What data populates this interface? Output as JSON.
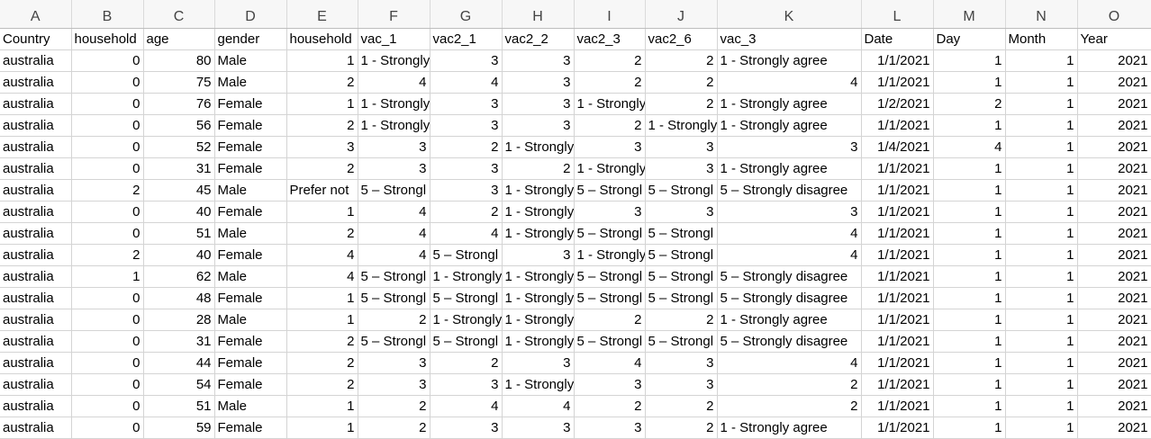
{
  "columns": [
    "A",
    "B",
    "C",
    "D",
    "E",
    "F",
    "G",
    "H",
    "I",
    "J",
    "K",
    "L",
    "M",
    "N",
    "O"
  ],
  "headers": [
    "Country",
    "household",
    "age",
    "gender",
    "household",
    "vac_1",
    "vac2_1",
    "vac2_2",
    "vac2_3",
    "vac2_6",
    "vac_3",
    "Date",
    "Day",
    "Month",
    "Year"
  ],
  "rows": [
    [
      "australia",
      "0",
      "80",
      "Male",
      "1",
      "1 - Strongly",
      "3",
      "3",
      "2",
      "2",
      "1 - Strongly agree",
      "1/1/2021",
      "1",
      "1",
      "2021"
    ],
    [
      "australia",
      "0",
      "75",
      "Male",
      "2",
      "4",
      "4",
      "3",
      "2",
      "2",
      "4",
      "1/1/2021",
      "1",
      "1",
      "2021"
    ],
    [
      "australia",
      "0",
      "76",
      "Female",
      "1",
      "1 - Strongly",
      "3",
      "3",
      "1 - Strongly",
      "2",
      "1 - Strongly agree",
      "1/2/2021",
      "2",
      "1",
      "2021"
    ],
    [
      "australia",
      "0",
      "56",
      "Female",
      "2",
      "1 - Strongly",
      "3",
      "3",
      "2",
      "1 - Strongly",
      "1 - Strongly agree",
      "1/1/2021",
      "1",
      "1",
      "2021"
    ],
    [
      "australia",
      "0",
      "52",
      "Female",
      "3",
      "3",
      "2",
      "1 - Strongly",
      "3",
      "3",
      "3",
      "1/4/2021",
      "4",
      "1",
      "2021"
    ],
    [
      "australia",
      "0",
      "31",
      "Female",
      "2",
      "3",
      "3",
      "2",
      "1 - Strongly",
      "3",
      "1 - Strongly agree",
      "1/1/2021",
      "1",
      "1",
      "2021"
    ],
    [
      "australia",
      "2",
      "45",
      "Male",
      "Prefer not",
      "5 – Strongl",
      "3",
      "1 - Strongly",
      "5 – Strongl",
      "5 – Strongl",
      "5 – Strongly disagree",
      "1/1/2021",
      "1",
      "1",
      "2021"
    ],
    [
      "australia",
      "0",
      "40",
      "Female",
      "1",
      "4",
      "2",
      "1 - Strongly",
      "3",
      "3",
      "3",
      "1/1/2021",
      "1",
      "1",
      "2021"
    ],
    [
      "australia",
      "0",
      "51",
      "Male",
      "2",
      "4",
      "4",
      "1 - Strongly",
      "5 – Strongl",
      "5 – Strongl",
      "4",
      "1/1/2021",
      "1",
      "1",
      "2021"
    ],
    [
      "australia",
      "2",
      "40",
      "Female",
      "4",
      "4",
      "5 – Strongl",
      "3",
      "1 - Strongly",
      "5 – Strongl",
      "4",
      "1/1/2021",
      "1",
      "1",
      "2021"
    ],
    [
      "australia",
      "1",
      "62",
      "Male",
      "4",
      "5 – Strongl",
      "1 - Strongly",
      "1 - Strongly",
      "5 – Strongl",
      "5 – Strongl",
      "5 – Strongly disagree",
      "1/1/2021",
      "1",
      "1",
      "2021"
    ],
    [
      "australia",
      "0",
      "48",
      "Female",
      "1",
      "5 – Strongl",
      "5 – Strongl",
      "1 - Strongly",
      "5 – Strongl",
      "5 – Strongl",
      "5 – Strongly disagree",
      "1/1/2021",
      "1",
      "1",
      "2021"
    ],
    [
      "australia",
      "0",
      "28",
      "Male",
      "1",
      "2",
      "1 - Strongly",
      "1 - Strongly",
      "2",
      "2",
      "1 - Strongly agree",
      "1/1/2021",
      "1",
      "1",
      "2021"
    ],
    [
      "australia",
      "0",
      "31",
      "Female",
      "2",
      "5 – Strongl",
      "5 – Strongl",
      "1 - Strongly",
      "5 – Strongl",
      "5 – Strongl",
      "5 – Strongly disagree",
      "1/1/2021",
      "1",
      "1",
      "2021"
    ],
    [
      "australia",
      "0",
      "44",
      "Female",
      "2",
      "3",
      "2",
      "3",
      "4",
      "3",
      "4",
      "1/1/2021",
      "1",
      "1",
      "2021"
    ],
    [
      "australia",
      "0",
      "54",
      "Female",
      "2",
      "3",
      "3",
      "1 - Strongly",
      "3",
      "3",
      "2",
      "1/1/2021",
      "1",
      "1",
      "2021"
    ],
    [
      "australia",
      "0",
      "51",
      "Male",
      "1",
      "2",
      "4",
      "4",
      "2",
      "2",
      "2",
      "1/1/2021",
      "1",
      "1",
      "2021"
    ],
    [
      "australia",
      "0",
      "59",
      "Female",
      "1",
      "2",
      "3",
      "3",
      "3",
      "2",
      "1 - Strongly agree",
      "1/1/2021",
      "1",
      "1",
      "2021"
    ]
  ]
}
